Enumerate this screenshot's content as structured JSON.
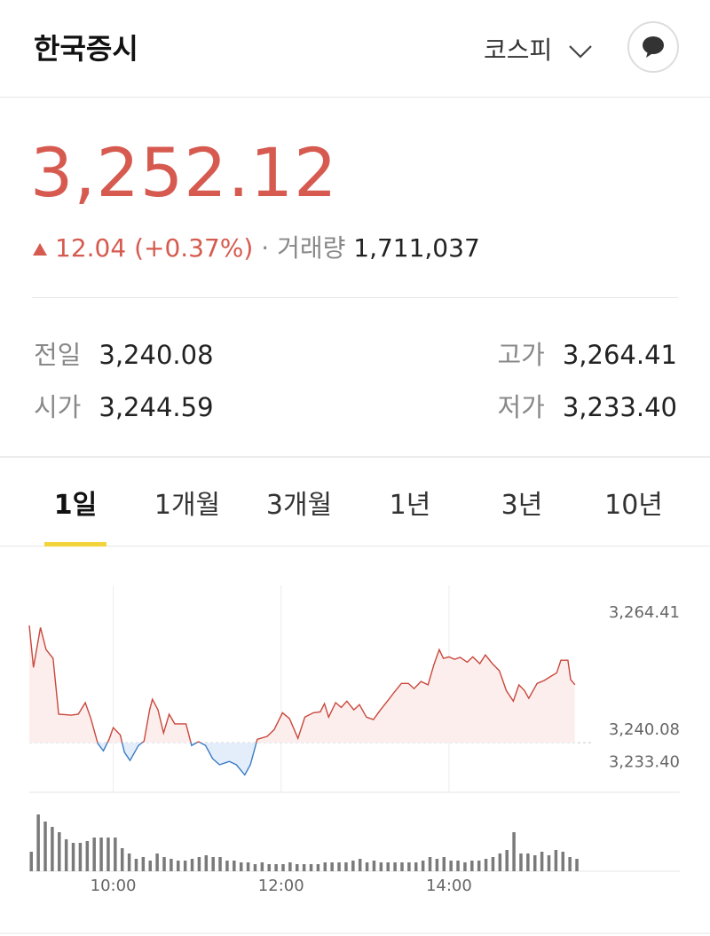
{
  "header": {
    "title": "한국증시",
    "market": "코스피"
  },
  "quote": {
    "price": "3,252.12",
    "change": "12.04",
    "change_percent": "(+0.37%)",
    "volume_label": "거래량",
    "volume": "1,711,037"
  },
  "stats": [
    {
      "label": "전일",
      "value": "3,240.08"
    },
    {
      "label": "고가",
      "value": "3,264.41"
    },
    {
      "label": "시가",
      "value": "3,244.59"
    },
    {
      "label": "저가",
      "value": "3,233.40"
    }
  ],
  "tabs": [
    "1일",
    "1개월",
    "3개월",
    "1년",
    "3년",
    "10년"
  ],
  "active_tab": 0,
  "chart_data": [
    {
      "type": "line",
      "x": [
        "09:00",
        "09:03",
        "09:08",
        "09:12",
        "09:17",
        "09:21",
        "09:30",
        "09:35",
        "09:40",
        "09:44",
        "09:49",
        "09:53",
        "09:57",
        "10:00",
        "10:05",
        "10:08",
        "10:12",
        "10:18",
        "10:22",
        "10:26",
        "10:28",
        "10:32",
        "10:36",
        "10:40",
        "10:44",
        "10:52",
        "10:56",
        "11:01",
        "11:06",
        "11:11",
        "11:16",
        "11:23",
        "11:28",
        "11:34",
        "11:38",
        "11:43",
        "11:50",
        "11:55",
        "12:01",
        "12:06",
        "12:12",
        "12:17",
        "12:23",
        "12:28",
        "12:31",
        "12:34",
        "12:39",
        "12:43",
        "12:47",
        "12:52",
        "12:56",
        "13:01",
        "13:06",
        "13:11",
        "13:16",
        "13:21",
        "13:26",
        "13:31",
        "13:35",
        "13:40",
        "13:45",
        "13:49",
        "13:53",
        "13:56",
        "14:00",
        "14:04",
        "14:08",
        "14:13",
        "14:17",
        "14:22",
        "14:26",
        "14:31",
        "14:36",
        "14:41",
        "14:46",
        "14:50",
        "14:54",
        "14:57",
        "15:03",
        "15:08",
        "15:13",
        "15:17",
        "15:20",
        "15:25",
        "15:27",
        "15:30"
      ],
      "values": [
        3264.41,
        3255.7,
        3264.0,
        3259.4,
        3257.6,
        3246.0,
        3245.8,
        3246.0,
        3248.4,
        3245.1,
        3239.9,
        3238.4,
        3240.8,
        3243.2,
        3241.7,
        3238.1,
        3236.4,
        3239.5,
        3240.4,
        3246.9,
        3249.1,
        3246.9,
        3242.1,
        3246.0,
        3244.0,
        3244.0,
        3239.5,
        3240.3,
        3239.5,
        3236.8,
        3235.5,
        3236.2,
        3235.5,
        3233.4,
        3235.5,
        3240.8,
        3241.4,
        3242.8,
        3246.3,
        3245.1,
        3241.0,
        3245.4,
        3246.3,
        3246.5,
        3248.2,
        3245.4,
        3248.4,
        3247.4,
        3248.7,
        3246.9,
        3248.0,
        3245.4,
        3244.9,
        3246.9,
        3248.7,
        3250.6,
        3252.4,
        3252.4,
        3251.3,
        3252.8,
        3252.1,
        3256.1,
        3259.4,
        3257.6,
        3257.9,
        3257.4,
        3257.8,
        3256.8,
        3257.9,
        3256.5,
        3258.3,
        3256.5,
        3255.0,
        3250.9,
        3248.7,
        3252.1,
        3250.9,
        3249.3,
        3252.4,
        3253.0,
        3253.9,
        3254.6,
        3257.2,
        3257.2,
        3253.2,
        3252.12
      ],
      "color": "#c8473b",
      "color_below": "#3a7cc2",
      "fill": "#fdeeee",
      "fill_below": "#e4eefb",
      "reference": 3240.08,
      "xlim": [
        "09:00",
        "16:45"
      ],
      "xticks": [
        "10:00",
        "12:00",
        "14:00"
      ],
      "ylim": [
        3229.8,
        3272.7
      ],
      "yticks": [
        {
          "value": 3264.41,
          "label": "3,264.41"
        },
        {
          "value": 3240.08,
          "label": "3,240.08"
        },
        {
          "value": 3233.4,
          "label": "3,233.40"
        }
      ],
      "grid": true
    },
    {
      "type": "bar",
      "x": [
        "09:00",
        "09:05",
        "09:10",
        "09:15",
        "09:20",
        "09:25",
        "09:30",
        "09:35",
        "09:40",
        "09:45",
        "09:50",
        "09:55",
        "10:00",
        "10:05",
        "10:10",
        "10:15",
        "10:20",
        "10:25",
        "10:30",
        "10:35",
        "10:40",
        "10:45",
        "10:50",
        "10:55",
        "11:00",
        "11:05",
        "11:10",
        "11:15",
        "11:20",
        "11:25",
        "11:30",
        "11:35",
        "11:40",
        "11:45",
        "11:50",
        "11:55",
        "12:00",
        "12:05",
        "12:10",
        "12:15",
        "12:20",
        "12:25",
        "12:30",
        "12:35",
        "12:40",
        "12:45",
        "12:50",
        "12:55",
        "13:00",
        "13:05",
        "13:10",
        "13:15",
        "13:20",
        "13:25",
        "13:30",
        "13:35",
        "13:40",
        "13:45",
        "13:50",
        "13:55",
        "14:00",
        "14:05",
        "14:10",
        "14:15",
        "14:20",
        "14:25",
        "14:30",
        "14:35",
        "14:40",
        "14:45",
        "14:50",
        "14:55",
        "15:00",
        "15:05",
        "15:10",
        "15:15",
        "15:20",
        "15:25",
        "15:30"
      ],
      "values": [
        22,
        64,
        56,
        50,
        44,
        36,
        32,
        32,
        34,
        38,
        38,
        38,
        38,
        26,
        20,
        14,
        16,
        12,
        20,
        16,
        14,
        12,
        12,
        14,
        16,
        18,
        16,
        16,
        12,
        12,
        10,
        10,
        8,
        10,
        8,
        8,
        8,
        10,
        8,
        8,
        8,
        8,
        10,
        10,
        10,
        10,
        12,
        14,
        10,
        12,
        10,
        10,
        10,
        10,
        10,
        10,
        12,
        16,
        14,
        16,
        12,
        12,
        10,
        12,
        12,
        14,
        16,
        20,
        24,
        44,
        20,
        20,
        18,
        22,
        18,
        24,
        22,
        16,
        14
      ],
      "color": "#7a7a7a",
      "xlim": [
        "09:00",
        "16:45"
      ],
      "ylim": [
        0,
        77
      ]
    }
  ]
}
